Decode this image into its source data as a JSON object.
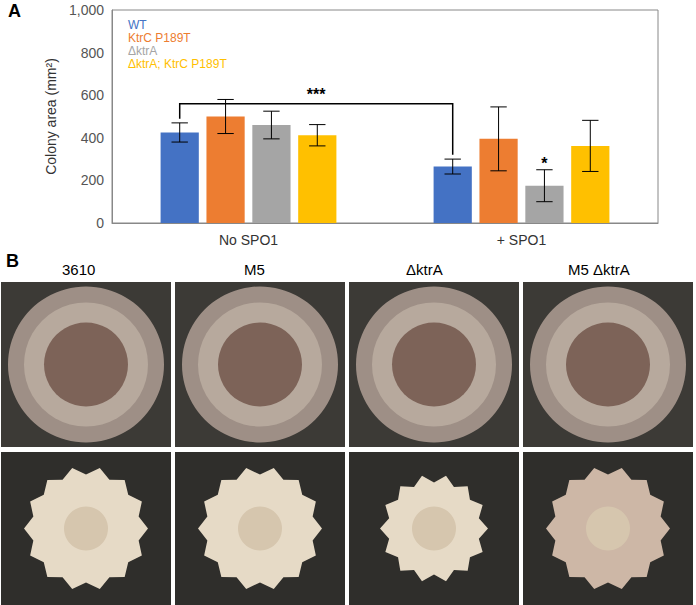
{
  "chart_data": {
    "type": "bar",
    "title": "A",
    "y_label": "Colony area (mm²)",
    "categories": [
      "No SPO1",
      "+ SPO1"
    ],
    "series": [
      {
        "name": "WT",
        "color": "#4472c4",
        "values": [
          425,
          265
        ],
        "errors": [
          45,
          35
        ]
      },
      {
        "name": "KtrC P189T",
        "color": "#ed7d31",
        "values": [
          500,
          395
        ],
        "errors": [
          80,
          150
        ]
      },
      {
        "name": "ΔktrA",
        "color": "#a5a5a5",
        "values": [
          460,
          175
        ],
        "errors": [
          65,
          75
        ]
      },
      {
        "name": "ΔktrA; KtrC P189T",
        "color": "#ffc000",
        "values": [
          412,
          362
        ],
        "errors": [
          50,
          120
        ]
      }
    ],
    "ylim": [
      0,
      1000
    ],
    "yticks": [
      0,
      200,
      400,
      600,
      800,
      1000
    ],
    "grid": false,
    "legend": "top-left",
    "annotations": [
      {
        "text": "***",
        "series": 0,
        "from": 0,
        "to": 1
      },
      {
        "text": "*",
        "series": 2,
        "category": 1
      }
    ]
  },
  "panel_b": {
    "label": "B",
    "images": [
      "3610",
      "M5",
      "ΔktrA",
      "M5 ΔktrA"
    ]
  }
}
